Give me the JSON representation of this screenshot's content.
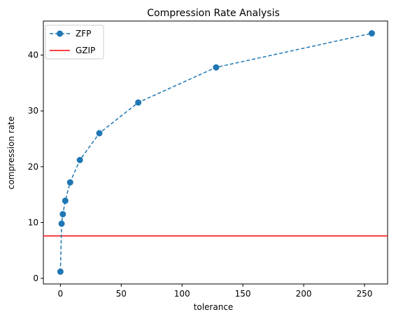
{
  "chart_data": {
    "type": "line",
    "title": "Compression Rate Analysis",
    "xlabel": "tolerance",
    "ylabel": "compression rate",
    "xlim": [
      -14,
      269
    ],
    "ylim": [
      -1,
      46.1
    ],
    "xticks": [
      0,
      50,
      100,
      150,
      200,
      250
    ],
    "yticks": [
      0,
      10,
      20,
      30,
      40
    ],
    "grid": false,
    "legend_placement": "top-left",
    "series": [
      {
        "name": "ZFP",
        "style": "dashed-line-with-circle-markers",
        "color": "#1f77b4",
        "x": [
          0,
          1,
          2,
          4,
          8,
          16,
          32,
          64,
          128,
          256
        ],
        "y": [
          1.2,
          9.8,
          11.5,
          13.9,
          17.2,
          21.2,
          26.0,
          31.5,
          37.8,
          43.9
        ]
      },
      {
        "name": "GZIP",
        "style": "horizontal-line",
        "color": "#ff0000",
        "y_const": 7.6
      }
    ]
  }
}
